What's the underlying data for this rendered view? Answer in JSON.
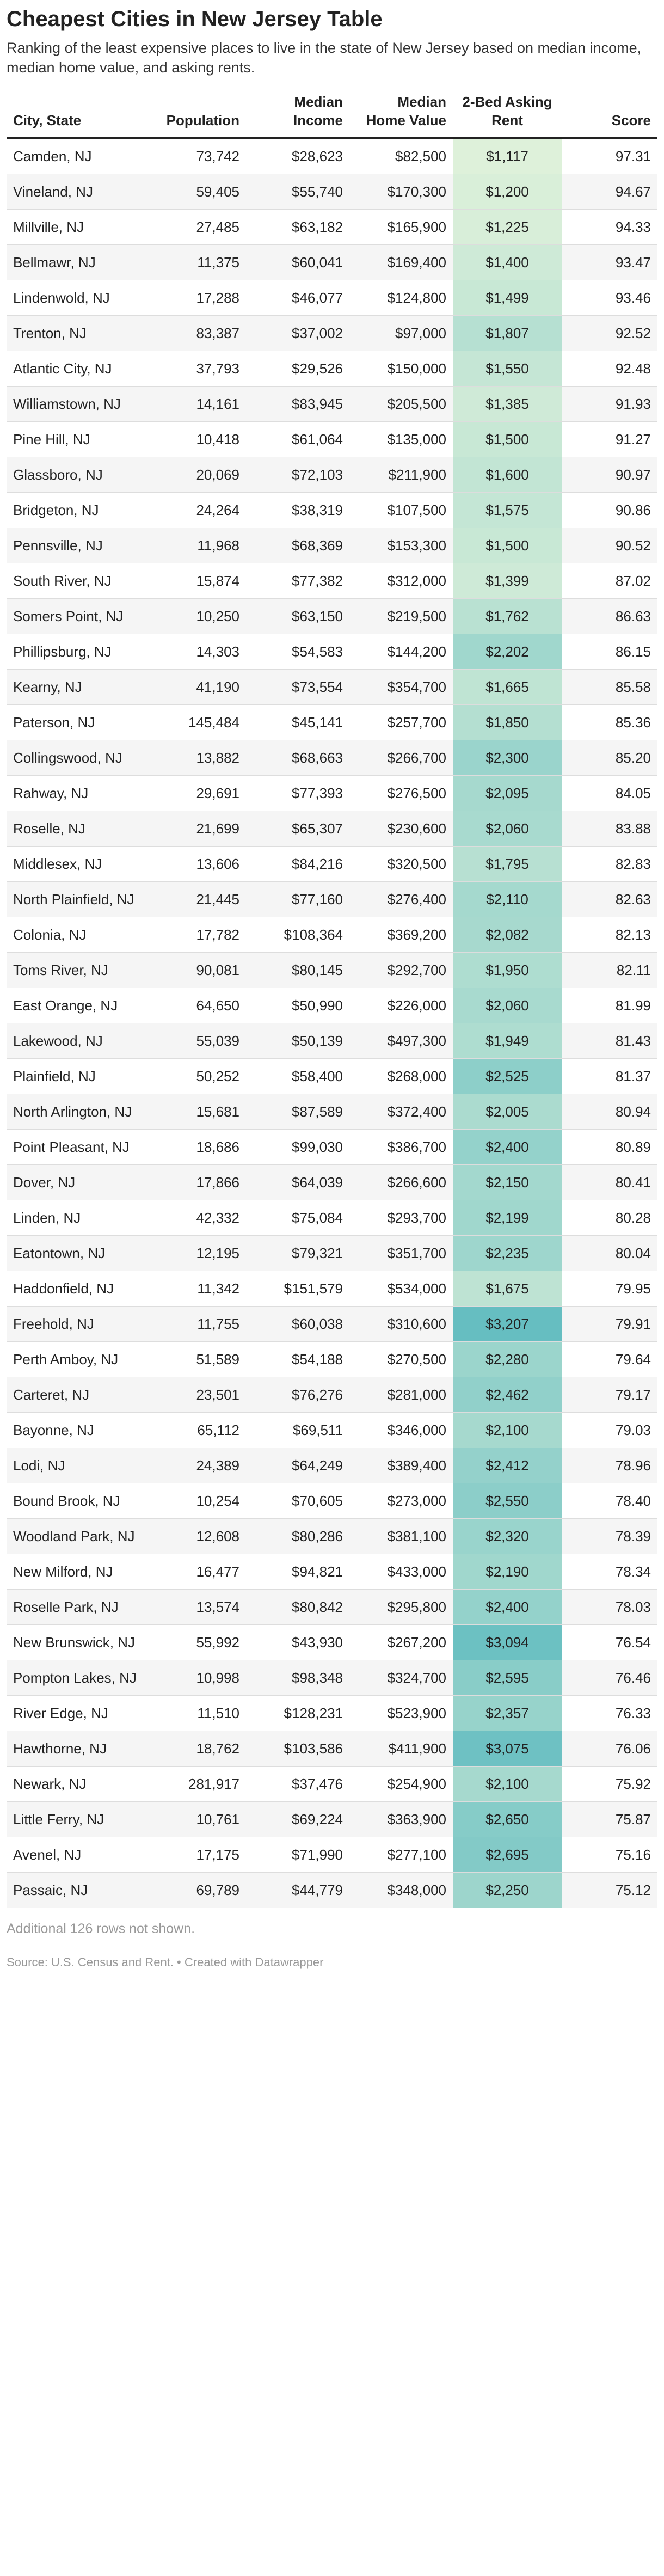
{
  "header": {
    "title": "Cheapest Cities in New Jersey Table",
    "subtitle": "Ranking of the least expensive places to live in the state of New Jersey based on median income, median home value, and asking rents."
  },
  "table": {
    "columns": [
      "City, State",
      "Population",
      "Median Income",
      "Median Home Value",
      "2-Bed Asking Rent",
      "Score"
    ],
    "rows": [
      [
        "Camden, NJ",
        "73,742",
        "$28,623",
        "$82,500",
        "$1,117",
        "97.31"
      ],
      [
        "Vineland, NJ",
        "59,405",
        "$55,740",
        "$170,300",
        "$1,200",
        "94.67"
      ],
      [
        "Millville, NJ",
        "27,485",
        "$63,182",
        "$165,900",
        "$1,225",
        "94.33"
      ],
      [
        "Bellmawr, NJ",
        "11,375",
        "$60,041",
        "$169,400",
        "$1,400",
        "93.47"
      ],
      [
        "Lindenwold, NJ",
        "17,288",
        "$46,077",
        "$124,800",
        "$1,499",
        "93.46"
      ],
      [
        "Trenton, NJ",
        "83,387",
        "$37,002",
        "$97,000",
        "$1,807",
        "92.52"
      ],
      [
        "Atlantic City, NJ",
        "37,793",
        "$29,526",
        "$150,000",
        "$1,550",
        "92.48"
      ],
      [
        "Williamstown, NJ",
        "14,161",
        "$83,945",
        "$205,500",
        "$1,385",
        "91.93"
      ],
      [
        "Pine Hill, NJ",
        "10,418",
        "$61,064",
        "$135,000",
        "$1,500",
        "91.27"
      ],
      [
        "Glassboro, NJ",
        "20,069",
        "$72,103",
        "$211,900",
        "$1,600",
        "90.97"
      ],
      [
        "Bridgeton, NJ",
        "24,264",
        "$38,319",
        "$107,500",
        "$1,575",
        "90.86"
      ],
      [
        "Pennsville, NJ",
        "11,968",
        "$68,369",
        "$153,300",
        "$1,500",
        "90.52"
      ],
      [
        "South River, NJ",
        "15,874",
        "$77,382",
        "$312,000",
        "$1,399",
        "87.02"
      ],
      [
        "Somers Point, NJ",
        "10,250",
        "$63,150",
        "$219,500",
        "$1,762",
        "86.63"
      ],
      [
        "Phillipsburg, NJ",
        "14,303",
        "$54,583",
        "$144,200",
        "$2,202",
        "86.15"
      ],
      [
        "Kearny, NJ",
        "41,190",
        "$73,554",
        "$354,700",
        "$1,665",
        "85.58"
      ],
      [
        "Paterson, NJ",
        "145,484",
        "$45,141",
        "$257,700",
        "$1,850",
        "85.36"
      ],
      [
        "Collingswood, NJ",
        "13,882",
        "$68,663",
        "$266,700",
        "$2,300",
        "85.20"
      ],
      [
        "Rahway, NJ",
        "29,691",
        "$77,393",
        "$276,500",
        "$2,095",
        "84.05"
      ],
      [
        "Roselle, NJ",
        "21,699",
        "$65,307",
        "$230,600",
        "$2,060",
        "83.88"
      ],
      [
        "Middlesex, NJ",
        "13,606",
        "$84,216",
        "$320,500",
        "$1,795",
        "82.83"
      ],
      [
        "North Plainfield, NJ",
        "21,445",
        "$77,160",
        "$276,400",
        "$2,110",
        "82.63"
      ],
      [
        "Colonia, NJ",
        "17,782",
        "$108,364",
        "$369,200",
        "$2,082",
        "82.13"
      ],
      [
        "Toms River, NJ",
        "90,081",
        "$80,145",
        "$292,700",
        "$1,950",
        "82.11"
      ],
      [
        "East Orange, NJ",
        "64,650",
        "$50,990",
        "$226,000",
        "$2,060",
        "81.99"
      ],
      [
        "Lakewood, NJ",
        "55,039",
        "$50,139",
        "$497,300",
        "$1,949",
        "81.43"
      ],
      [
        "Plainfield, NJ",
        "50,252",
        "$58,400",
        "$268,000",
        "$2,525",
        "81.37"
      ],
      [
        "North Arlington, NJ",
        "15,681",
        "$87,589",
        "$372,400",
        "$2,005",
        "80.94"
      ],
      [
        "Point Pleasant, NJ",
        "18,686",
        "$99,030",
        "$386,700",
        "$2,400",
        "80.89"
      ],
      [
        "Dover, NJ",
        "17,866",
        "$64,039",
        "$266,600",
        "$2,150",
        "80.41"
      ],
      [
        "Linden, NJ",
        "42,332",
        "$75,084",
        "$293,700",
        "$2,199",
        "80.28"
      ],
      [
        "Eatontown, NJ",
        "12,195",
        "$79,321",
        "$351,700",
        "$2,235",
        "80.04"
      ],
      [
        "Haddonfield, NJ",
        "11,342",
        "$151,579",
        "$534,000",
        "$1,675",
        "79.95"
      ],
      [
        "Freehold, NJ",
        "11,755",
        "$60,038",
        "$310,600",
        "$3,207",
        "79.91"
      ],
      [
        "Perth Amboy, NJ",
        "51,589",
        "$54,188",
        "$270,500",
        "$2,280",
        "79.64"
      ],
      [
        "Carteret, NJ",
        "23,501",
        "$76,276",
        "$281,000",
        "$2,462",
        "79.17"
      ],
      [
        "Bayonne, NJ",
        "65,112",
        "$69,511",
        "$346,000",
        "$2,100",
        "79.03"
      ],
      [
        "Lodi, NJ",
        "24,389",
        "$64,249",
        "$389,400",
        "$2,412",
        "78.96"
      ],
      [
        "Bound Brook, NJ",
        "10,254",
        "$70,605",
        "$273,000",
        "$2,550",
        "78.40"
      ],
      [
        "Woodland Park, NJ",
        "12,608",
        "$80,286",
        "$381,100",
        "$2,320",
        "78.39"
      ],
      [
        "New Milford, NJ",
        "16,477",
        "$94,821",
        "$433,000",
        "$2,190",
        "78.34"
      ],
      [
        "Roselle Park, NJ",
        "13,574",
        "$80,842",
        "$295,800",
        "$2,400",
        "78.03"
      ],
      [
        "New Brunswick, NJ",
        "55,992",
        "$43,930",
        "$267,200",
        "$3,094",
        "76.54"
      ],
      [
        "Pompton Lakes, NJ",
        "10,998",
        "$98,348",
        "$324,700",
        "$2,595",
        "76.46"
      ],
      [
        "River Edge, NJ",
        "11,510",
        "$128,231",
        "$523,900",
        "$2,357",
        "76.33"
      ],
      [
        "Hawthorne, NJ",
        "18,762",
        "$103,586",
        "$411,900",
        "$3,075",
        "76.06"
      ],
      [
        "Newark, NJ",
        "281,917",
        "$37,476",
        "$254,900",
        "$2,100",
        "75.92"
      ],
      [
        "Little Ferry, NJ",
        "10,761",
        "$69,224",
        "$363,900",
        "$2,650",
        "75.87"
      ],
      [
        "Avenel, NJ",
        "17,175",
        "$71,990",
        "$277,100",
        "$2,695",
        "75.16"
      ],
      [
        "Passaic, NJ",
        "69,789",
        "$44,779",
        "$348,000",
        "$2,250",
        "75.12"
      ]
    ]
  },
  "footer": {
    "note": "Additional 126 rows not shown.",
    "source": "Source: U.S. Census and Rent. • Created with Datawrapper"
  }
}
